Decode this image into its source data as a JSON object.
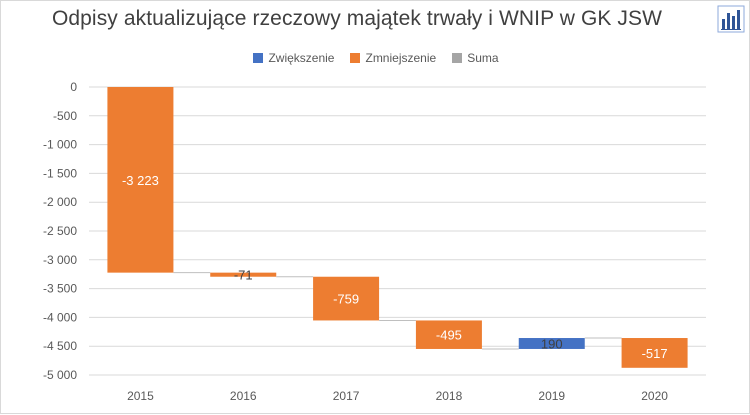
{
  "chart_data": {
    "type": "waterfall",
    "title": "Odpisy aktualizujące rzeczowy majątek trwały i WNIP w GK JSW",
    "categories": [
      "2015",
      "2016",
      "2017",
      "2018",
      "2019",
      "2020"
    ],
    "values": [
      -3223,
      -71,
      -759,
      -495,
      190,
      -517
    ],
    "value_labels": [
      "-3 223",
      "-71",
      "-759",
      "-495",
      "190",
      "-517"
    ],
    "legend": [
      {
        "name": "Zwiększenie",
        "color": "#4472c4"
      },
      {
        "name": "Zmniejszenie",
        "color": "#ed7d31"
      },
      {
        "name": "Suma",
        "color": "#a5a5a5"
      }
    ],
    "legend_position": "top",
    "ylim": [
      -5000,
      0
    ],
    "y_ticks": [
      0,
      -500,
      -1000,
      -1500,
      -2000,
      -2500,
      -3000,
      -3500,
      -4000,
      -4500,
      -5000
    ],
    "y_tick_labels": [
      "0",
      "-500",
      "-1 000",
      "-1 500",
      "-2 000",
      "-2 500",
      "-3 000",
      "-3 500",
      "-4 000",
      "-4 500",
      "-5 000"
    ],
    "grid": "horizontal",
    "colors": {
      "increase": "#4472c4",
      "decrease": "#ed7d31",
      "total": "#a5a5a5",
      "grid": "#d9d9d9",
      "connector": "#bfbfbf"
    }
  },
  "icons": {
    "corner": "chart-icon"
  }
}
